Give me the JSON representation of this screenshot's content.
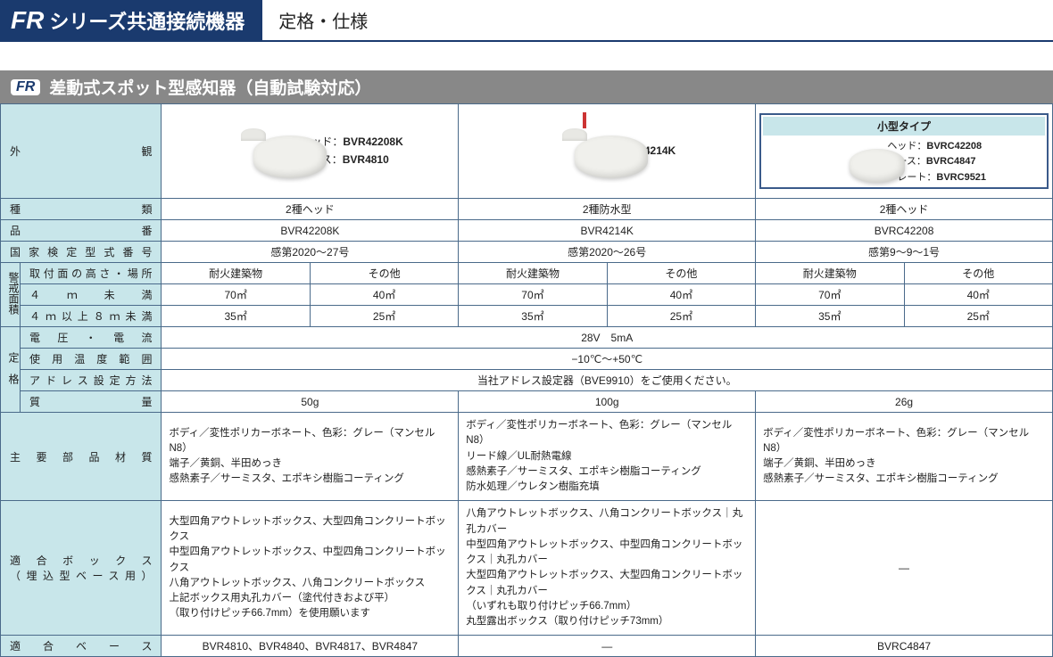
{
  "header": {
    "brand": "FR",
    "title_left": "シリーズ共通接続機器",
    "title_right": "定格・仕様"
  },
  "section": {
    "badge": "FR",
    "title": "差動式スポット型感知器（自動試験対応）"
  },
  "labels": {
    "appearance": "外　観",
    "type": "種　類",
    "product_no": "品　番",
    "cert_no": "国家検定型式番号",
    "area": "警戒面積",
    "mount": "取付面の高さ・場所",
    "under4": "４ｍ未満",
    "over4": "４ｍ以上８ｍ未満",
    "fire": "耐火建築物",
    "other": "その他",
    "rating": "定　格",
    "voltage": "電圧・電流",
    "temp": "使用温度範囲",
    "addr": "アドレス設定方法",
    "weight": "質　量",
    "material": "主要部品材質",
    "box": "適合ボックス",
    "box_sub": "（埋込型ベース用）",
    "base": "適合ベース",
    "small_type": "小型タイプ",
    "head": "ヘッド：",
    "base_lbl": "ベース：",
    "plate": "プレート："
  },
  "products": {
    "p1": {
      "head_model": "BVR42208K",
      "base_model": "BVR4810",
      "type": "2種ヘッド",
      "product_no": "BVR42208K",
      "cert": "感第2020～27号",
      "u4_fire": "70㎡",
      "u4_other": "40㎡",
      "o4_fire": "35㎡",
      "o4_other": "25㎡",
      "weight": "50g",
      "material": "ボディ／変性ポリカーボネート、色彩：グレー（マンセルN8）\n端子／黄銅、半田めっき\n感熱素子／サーミスタ、エポキシ樹脂コーティング",
      "box": "大型四角アウトレットボックス、大型四角コンクリートボックス\n中型四角アウトレットボックス、中型四角コンクリートボックス\n八角アウトレットボックス、八角コンクリートボックス\n上記ボックス用丸孔カバー（塗代付きおよび平）\n（取り付けピッチ66.7mm）を使用願います",
      "base": "BVR4810、BVR4840、BVR4817、BVR4847"
    },
    "p2": {
      "model": "BVR4214K",
      "type": "2種防水型",
      "product_no": "BVR4214K",
      "cert": "感第2020～26号",
      "u4_fire": "70㎡",
      "u4_other": "40㎡",
      "o4_fire": "35㎡",
      "o4_other": "25㎡",
      "weight": "100g",
      "material": "ボディ／変性ポリカーボネート、色彩：グレー（マンセルN8）\nリード線／UL耐熱電線\n感熱素子／サーミスタ、エポキシ樹脂コーティング\n防水処理／ウレタン樹脂充填",
      "box": "八角アウトレットボックス、八角コンクリートボックス｜丸孔カバー\n中型四角アウトレットボックス、中型四角コンクリートボックス｜丸孔カバー\n大型四角アウトレットボックス、大型四角コンクリートボックス｜丸孔カバー\n（いずれも取り付けピッチ66.7mm）\n丸型露出ボックス（取り付けピッチ73mm）",
      "base": "―"
    },
    "p3": {
      "head_model": "BVRC42208",
      "base_model": "BVRC4847",
      "plate_model": "BVRC9521",
      "type": "2種ヘッド",
      "product_no": "BVRC42208",
      "cert": "感第9～9～1号",
      "u4_fire": "70㎡",
      "u4_other": "40㎡",
      "o4_fire": "35㎡",
      "o4_other": "25㎡",
      "weight": "26g",
      "material": "ボディ／変性ポリカーボネート、色彩：グレー（マンセルN8）\n端子／黄銅、半田めっき\n感熱素子／サーミスタ、エポキシ樹脂コーティング",
      "box": "―",
      "base": "BVRC4847"
    }
  },
  "common": {
    "voltage": "28V　5mA",
    "temp": "−10℃〜+50℃",
    "addr": "当社アドレス設定器（BVE9910）をご使用ください。"
  },
  "colors": {
    "navy": "#1a3a6e",
    "gray_bar": "#888888",
    "cell_blue": "#c8e6ea",
    "border": "#4a6a8a"
  }
}
